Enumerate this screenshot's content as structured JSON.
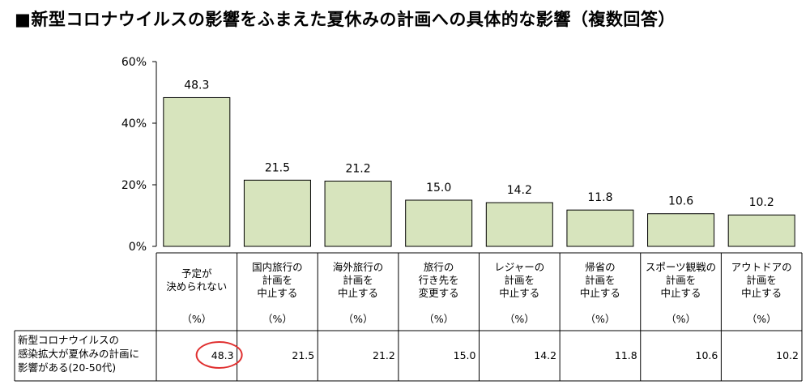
{
  "title": "■新型コロナウイルスの影響をふまえた夏休みの計画への具体的な影響（複数回答）",
  "chart_data": {
    "type": "bar",
    "categories": [
      [
        "予定が",
        "決められない"
      ],
      [
        "国内旅行の",
        "計画を",
        "中止する"
      ],
      [
        "海外旅行の",
        "計画を",
        "中止する"
      ],
      [
        "旅行の",
        "行き先を",
        "変更する"
      ],
      [
        "レジャーの",
        "計画を",
        "中止する"
      ],
      [
        "帰省の",
        "計画を",
        "中止する"
      ],
      [
        "スポーツ観戦の",
        "計画を",
        "中止する"
      ],
      [
        "アウトドアの",
        "計画を",
        "中止する"
      ]
    ],
    "values": [
      48.3,
      21.5,
      21.2,
      15.0,
      14.2,
      11.8,
      10.6,
      10.2
    ],
    "value_labels": [
      "48.3",
      "21.5",
      "21.2",
      "15.0",
      "14.2",
      "11.8",
      "10.6",
      "10.2"
    ],
    "unit_label": "（%）",
    "ylim": [
      0,
      60
    ],
    "yticks": [
      0,
      20,
      40,
      60
    ],
    "ytick_labels": [
      "0%",
      "20%",
      "40%",
      "60%"
    ],
    "bar_color": "#d7e4bd",
    "highlight_color": "#e03030",
    "table": {
      "row_label": [
        "新型コロナウイルスの",
        "感染拡大が夏休みの計画に",
        "影響がある(20-50代)"
      ],
      "values": [
        "48.3",
        "21.5",
        "21.2",
        "15.0",
        "14.2",
        "11.8",
        "10.6",
        "10.2"
      ],
      "highlighted_index": 0
    }
  }
}
